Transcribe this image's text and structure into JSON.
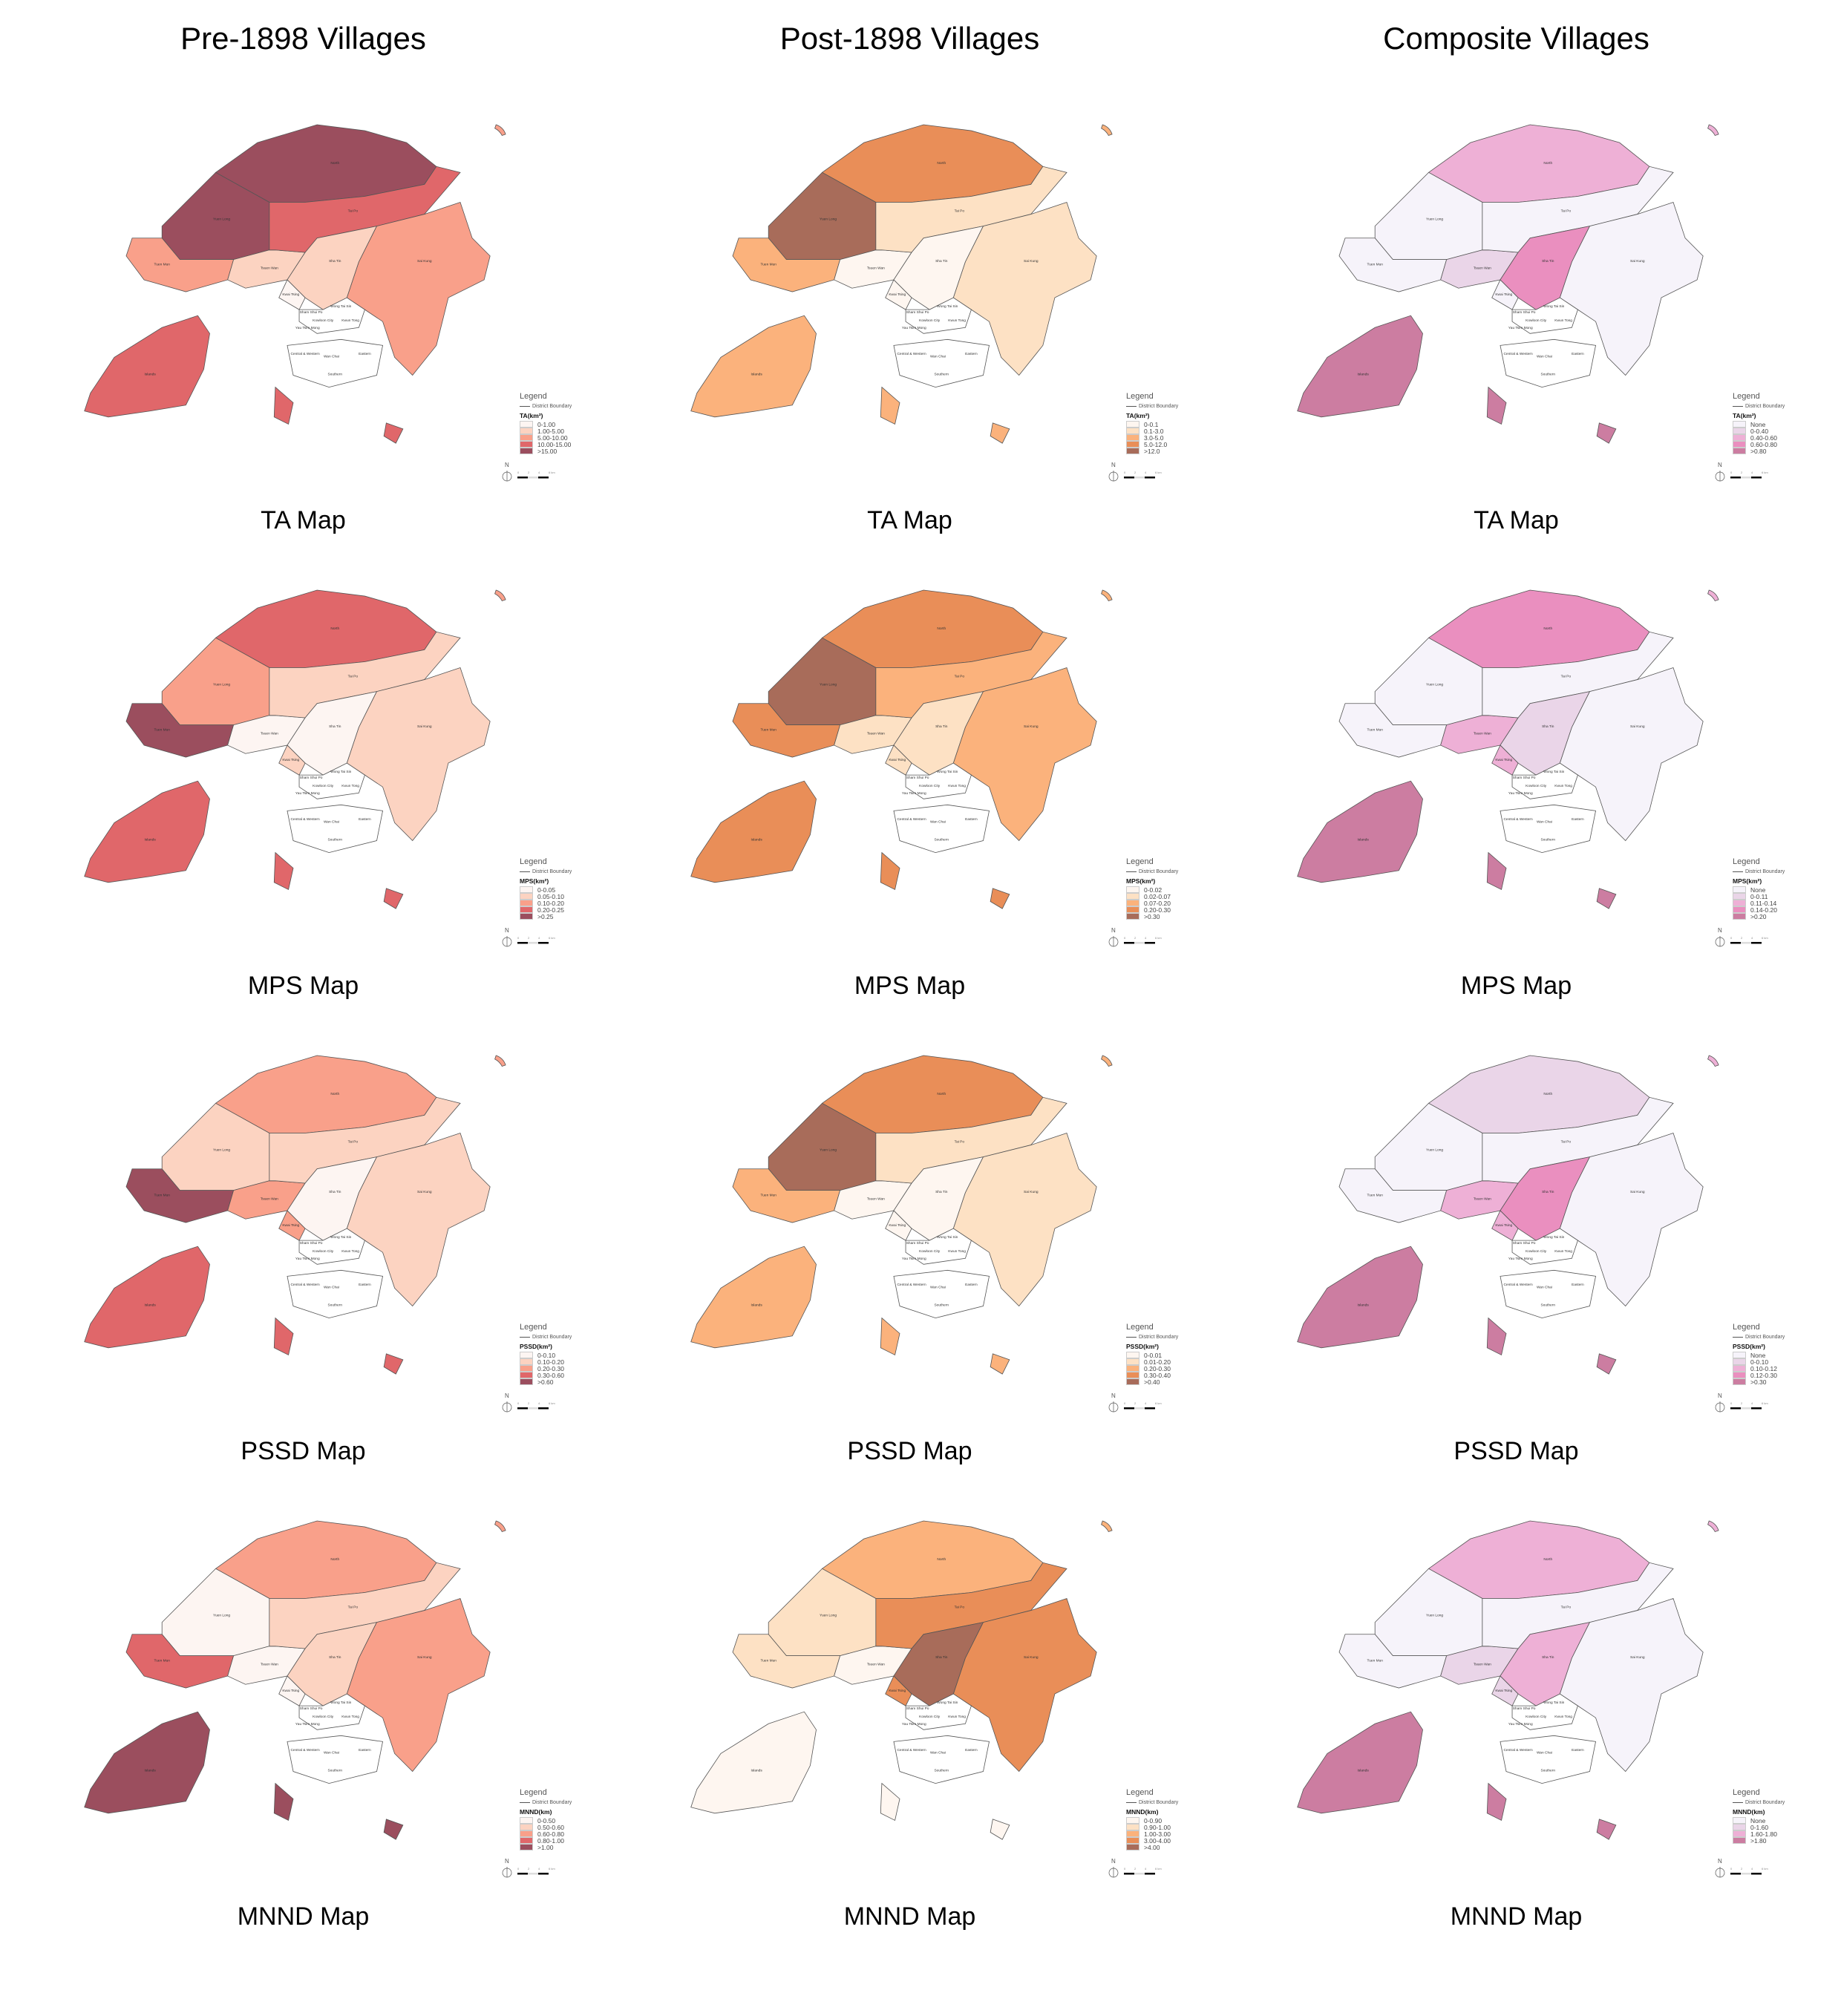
{
  "columns": [
    {
      "title": "Pre-1898 Villages",
      "palette": [
        "#fdf5f2",
        "#fcd3c1",
        "#f9a08a",
        "#e0676a",
        "#9b4e5e"
      ]
    },
    {
      "title": "Post-1898 Villages",
      "palette": [
        "#fef6f0",
        "#fde1c4",
        "#fbb27c",
        "#e98e58",
        "#a86c5a"
      ]
    },
    {
      "title": "Composite Villages",
      "palette": [
        "#f6f3fa",
        "#ead5e8",
        "#eeb0d6",
        "#ea8fbf",
        "#cc7da1"
      ]
    }
  ],
  "legend_common": {
    "title": "Legend",
    "boundary": "District Boundary",
    "north": "N",
    "scale": [
      "0",
      "2",
      "4",
      "6 km"
    ]
  },
  "district_labels": [
    "North",
    "Yuen Long",
    "Tuen Mun",
    "Tsuen Wan",
    "Tai Po",
    "Sha Tin",
    "Sai Kung",
    "Kwai Tsing",
    "Islands",
    "Sham Shui Po",
    "Wong Tai Sin",
    "Kowloon City",
    "Kwun Tong",
    "Yau Tsim Mong",
    "Central & Western",
    "Wan Chai",
    "Eastern",
    "Southern"
  ],
  "rows": [
    {
      "caption": "TA Map",
      "cells": [
        {
          "metric": "TA(km²)",
          "classes": [
            "0-1.00",
            "1.00-5.00",
            "5.00-10.00",
            "10.00-15.00",
            ">15.00"
          ],
          "district_class": {
            "North": 4,
            "Yuen Long": 4,
            "Tuen Mun": 2,
            "Tsuen Wan": 1,
            "Tai Po": 3,
            "Sha Tin": 1,
            "Sai Kung": 2,
            "Kwai Tsing": 0,
            "Islands": 3
          }
        },
        {
          "metric": "TA(km²)",
          "classes": [
            "0-0.1",
            "0.1-3.0",
            "3.0-5.0",
            "5.0-12.0",
            ">12.0"
          ],
          "district_class": {
            "North": 3,
            "Yuen Long": 4,
            "Tuen Mun": 2,
            "Tsuen Wan": 0,
            "Tai Po": 1,
            "Sha Tin": 0,
            "Sai Kung": 1,
            "Kwai Tsing": 0,
            "Islands": 2
          }
        },
        {
          "metric": "TA(km²)",
          "classes": [
            "None",
            "0-0.40",
            "0.40-0.60",
            "0.60-0.80",
            ">0.80"
          ],
          "district_class": {
            "North": 2,
            "Yuen Long": 0,
            "Tuen Mun": 0,
            "Tsuen Wan": 1,
            "Tai Po": 0,
            "Sha Tin": 3,
            "Sai Kung": 0,
            "Kwai Tsing": 0,
            "Islands": 4
          }
        }
      ]
    },
    {
      "caption": "MPS Map",
      "cells": [
        {
          "metric": "MPS(km²)",
          "classes": [
            "0-0.05",
            "0.05-0.10",
            "0.10-0.20",
            "0.20-0.25",
            ">0.25"
          ],
          "district_class": {
            "North": 3,
            "Yuen Long": 2,
            "Tuen Mun": 4,
            "Tsuen Wan": 0,
            "Tai Po": 1,
            "Sha Tin": 0,
            "Sai Kung": 1,
            "Kwai Tsing": 1,
            "Islands": 3
          }
        },
        {
          "metric": "MPS(km²)",
          "classes": [
            "0-0.02",
            "0.02-0.07",
            "0.07-0.20",
            "0.20-0.30",
            ">0.30"
          ],
          "district_class": {
            "North": 3,
            "Yuen Long": 4,
            "Tuen Mun": 3,
            "Tsuen Wan": 1,
            "Tai Po": 2,
            "Sha Tin": 1,
            "Sai Kung": 2,
            "Kwai Tsing": 1,
            "Islands": 3
          }
        },
        {
          "metric": "MPS(km²)",
          "classes": [
            "None",
            "0-0.11",
            "0.11-0.14",
            "0.14-0.20",
            ">0.20"
          ],
          "district_class": {
            "North": 3,
            "Yuen Long": 0,
            "Tuen Mun": 0,
            "Tsuen Wan": 2,
            "Tai Po": 0,
            "Sha Tin": 1,
            "Sai Kung": 0,
            "Kwai Tsing": 2,
            "Islands": 4
          }
        }
      ]
    },
    {
      "caption": "PSSD Map",
      "cells": [
        {
          "metric": "PSSD(km²)",
          "classes": [
            "0-0.10",
            "0.10-0.20",
            "0.20-0.30",
            "0.30-0.60",
            ">0.60"
          ],
          "district_class": {
            "North": 2,
            "Yuen Long": 1,
            "Tuen Mun": 4,
            "Tsuen Wan": 2,
            "Tai Po": 1,
            "Sha Tin": 0,
            "Sai Kung": 1,
            "Kwai Tsing": 2,
            "Islands": 3
          }
        },
        {
          "metric": "PSSD(km²)",
          "classes": [
            "0-0.01",
            "0.01-0.20",
            "0.20-0.30",
            "0.30-0.40",
            ">0.40"
          ],
          "district_class": {
            "North": 3,
            "Yuen Long": 4,
            "Tuen Mun": 2,
            "Tsuen Wan": 0,
            "Tai Po": 1,
            "Sha Tin": 0,
            "Sai Kung": 1,
            "Kwai Tsing": 0,
            "Islands": 2
          }
        },
        {
          "metric": "PSSD(km²)",
          "classes": [
            "None",
            "0-0.10",
            "0.10-0.12",
            "0.12-0.30",
            ">0.30"
          ],
          "district_class": {
            "North": 1,
            "Yuen Long": 0,
            "Tuen Mun": 0,
            "Tsuen Wan": 2,
            "Tai Po": 0,
            "Sha Tin": 3,
            "Sai Kung": 0,
            "Kwai Tsing": 2,
            "Islands": 4
          }
        }
      ]
    },
    {
      "caption": "MNND Map",
      "cells": [
        {
          "metric": "MNND(km)",
          "classes": [
            "0-0.50",
            "0.50-0.60",
            "0.60-0.80",
            "0.80-1.00",
            ">1.00"
          ],
          "district_class": {
            "North": 2,
            "Yuen Long": 0,
            "Tuen Mun": 3,
            "Tsuen Wan": 0,
            "Tai Po": 1,
            "Sha Tin": 1,
            "Sai Kung": 2,
            "Kwai Tsing": 0,
            "Islands": 4
          }
        },
        {
          "metric": "MNND(km)",
          "classes": [
            "0-0.90",
            "0.90-1.00",
            "1.00-3.00",
            "3.00-4.00",
            ">4.00"
          ],
          "district_class": {
            "North": 2,
            "Yuen Long": 1,
            "Tuen Mun": 1,
            "Tsuen Wan": 0,
            "Tai Po": 3,
            "Sha Tin": 4,
            "Sai Kung": 3,
            "Kwai Tsing": 3,
            "Islands": 0
          }
        },
        {
          "metric": "MNND(km)",
          "classes": [
            "None",
            "0-1.60",
            "1.60-1.80",
            ">1.80"
          ],
          "district_class": {
            "North": 2,
            "Yuen Long": 0,
            "Tuen Mun": 0,
            "Tsuen Wan": 1,
            "Tai Po": 0,
            "Sha Tin": 2,
            "Sai Kung": 0,
            "Kwai Tsing": 1,
            "Islands": 3
          }
        }
      ]
    }
  ]
}
